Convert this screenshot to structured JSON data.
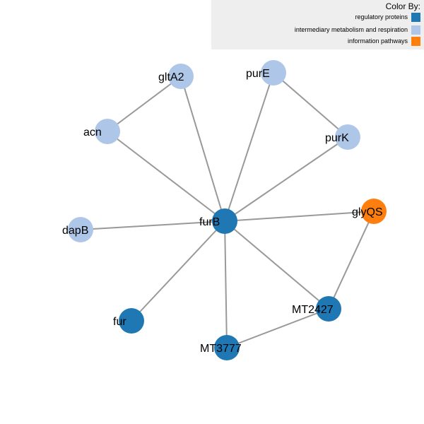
{
  "legend": {
    "title": "Color By:",
    "items": [
      {
        "key": "regulatory",
        "label": "regulatory proteins",
        "color": "#1f77b4"
      },
      {
        "key": "metabolism",
        "label": "intermediary metabolism and respiration",
        "color": "#aec7e8"
      },
      {
        "key": "information",
        "label": "information pathways",
        "color": "#ff7f0e"
      }
    ]
  },
  "graph": {
    "nodes": [
      {
        "id": "gltA2",
        "label": "gltA2",
        "category": "metabolism"
      },
      {
        "id": "purE",
        "label": "purE",
        "category": "metabolism"
      },
      {
        "id": "acn",
        "label": "acn",
        "category": "metabolism"
      },
      {
        "id": "purK",
        "label": "purK",
        "category": "metabolism"
      },
      {
        "id": "furB",
        "label": "furB",
        "category": "regulatory"
      },
      {
        "id": "glyQS",
        "label": "glyQS",
        "category": "information"
      },
      {
        "id": "dapB",
        "label": "dapB",
        "category": "metabolism"
      },
      {
        "id": "MT2427",
        "label": "MT2427",
        "category": "regulatory"
      },
      {
        "id": "fur",
        "label": "fur",
        "category": "regulatory"
      },
      {
        "id": "MT3777",
        "label": "MT3777",
        "category": "regulatory"
      }
    ],
    "edges": [
      [
        "gltA2",
        "acn"
      ],
      [
        "gltA2",
        "furB"
      ],
      [
        "purE",
        "purK"
      ],
      [
        "purE",
        "furB"
      ],
      [
        "acn",
        "furB"
      ],
      [
        "purK",
        "furB"
      ],
      [
        "furB",
        "glyQS"
      ],
      [
        "furB",
        "dapB"
      ],
      [
        "furB",
        "fur"
      ],
      [
        "furB",
        "MT2427"
      ],
      [
        "furB",
        "MT3777"
      ],
      [
        "glyQS",
        "MT2427"
      ],
      [
        "MT2427",
        "MT3777"
      ]
    ]
  }
}
